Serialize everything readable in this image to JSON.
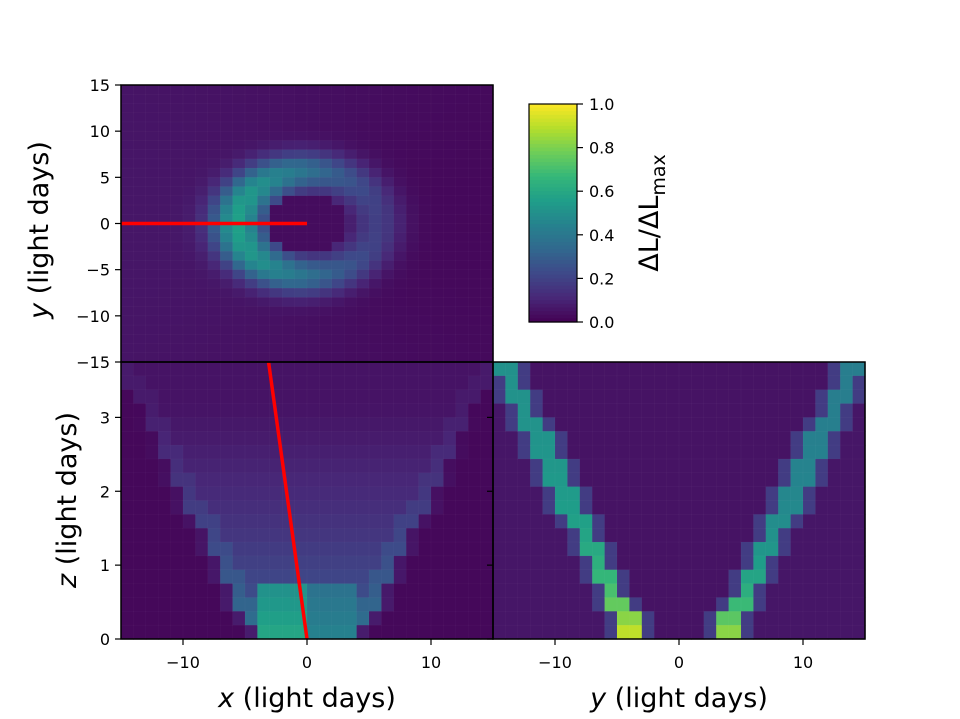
{
  "chart_data": [
    {
      "type": "heatmap",
      "panel": "top-left",
      "xlim": [
        -15,
        15
      ],
      "ylim": [
        -15,
        15
      ],
      "xlabel": "",
      "ylabel": "y (light days)",
      "ylabel_var": "y",
      "ylabel_unit": " (light days)",
      "yticks": [
        15,
        10,
        5,
        0,
        -5,
        -10,
        -15
      ],
      "ytick_labels": [
        "15",
        "10",
        "5",
        "0",
        "−5",
        "−10",
        "−15"
      ],
      "grid": true,
      "description_of_values": "ring of emission at radius ~5 light days, brighter on -x side",
      "line": {
        "color": "#ff0000",
        "x": [
          -15,
          0
        ],
        "y": [
          0,
          0
        ]
      }
    },
    {
      "type": "heatmap",
      "panel": "bottom-left",
      "xlim": [
        -15,
        15
      ],
      "ylim": [
        0,
        3.75
      ],
      "xlabel": "x (light days)",
      "xlabel_var": "x",
      "xlabel_unit": " (light days)",
      "ylabel": "z (light days)",
      "ylabel_var": "z",
      "ylabel_unit": " (light days)",
      "xticks": [
        -10,
        0,
        10
      ],
      "xtick_labels": [
        "−10",
        "0",
        "10"
      ],
      "yticks": [
        0,
        1,
        2,
        3
      ],
      "ytick_labels": [
        "0",
        "1",
        "2",
        "3"
      ],
      "grid": true,
      "line": {
        "color": "#ff0000",
        "x": [
          0,
          -3.1
        ],
        "y": [
          0,
          3.75
        ]
      }
    },
    {
      "type": "heatmap",
      "panel": "bottom-right",
      "xlim": [
        -15,
        15
      ],
      "ylim": [
        0,
        3.75
      ],
      "xlabel": "y (light days)",
      "xlabel_var": "y",
      "xlabel_unit": " (light days)",
      "xticks": [
        -10,
        0,
        10
      ],
      "xtick_labels": [
        "−10",
        "0",
        "10"
      ],
      "grid": true
    }
  ],
  "colorbar": {
    "label": "ΔL/ΔL_max",
    "label_main": "ΔL/ΔL",
    "label_sub": "max",
    "range": [
      0,
      1
    ],
    "ticks": [
      0.0,
      0.2,
      0.4,
      0.6,
      0.8,
      1.0
    ],
    "tick_labels": [
      "0.0",
      "0.2",
      "0.4",
      "0.6",
      "0.8",
      "1.0"
    ],
    "colormap": "viridis"
  },
  "colors": {
    "line": "#ff0000",
    "background_cell": "#440154"
  }
}
